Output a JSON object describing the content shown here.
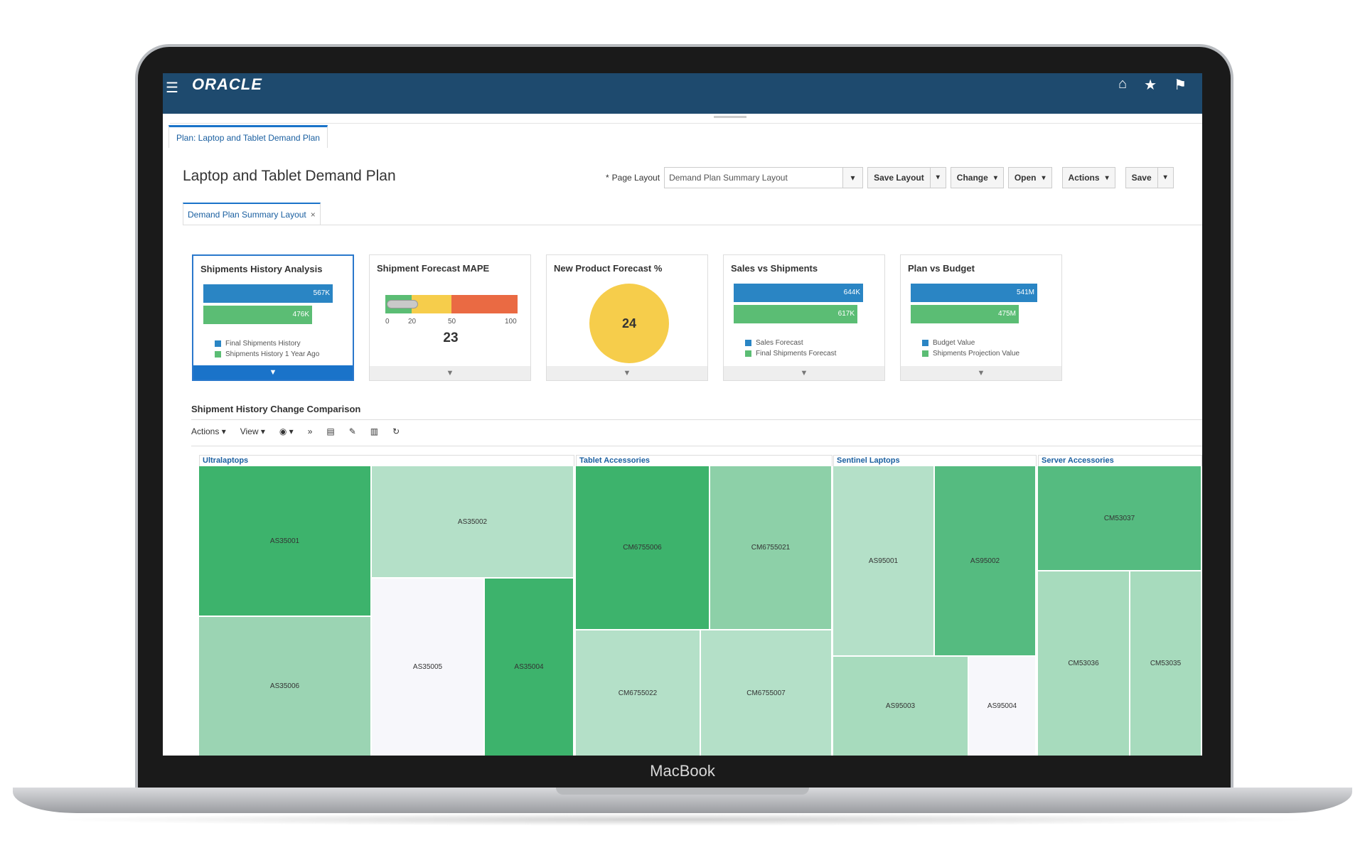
{
  "device": {
    "brand": "MacBook"
  },
  "app": {
    "logo": "ORACLE"
  },
  "plan_tab": "Plan: Laptop and Tablet Demand Plan",
  "page_title": "Laptop and Tablet Demand Plan",
  "toolbar": {
    "page_layout_label": "Page Layout",
    "page_layout_value": "Demand Plan Summary Layout",
    "save_layout": "Save Layout",
    "change": "Change",
    "open": "Open",
    "actions": "Actions",
    "save": "Save"
  },
  "layout_tab": "Demand Plan Summary Layout",
  "tiles": [
    {
      "title": "Shipments History Analysis",
      "bars": [
        {
          "label": "567K",
          "value": 567
        },
        {
          "label": "476K",
          "value": 476
        }
      ],
      "legend": [
        "Final Shipments History",
        "Shipments History 1 Year Ago"
      ]
    },
    {
      "title": "Shipment Forecast MAPE",
      "ticks": [
        "0",
        "20",
        "50",
        "100"
      ],
      "value": "23"
    },
    {
      "title": "New Product Forecast %",
      "value": "24"
    },
    {
      "title": "Sales vs Shipments",
      "bars": [
        {
          "label": "644K",
          "value": 644
        },
        {
          "label": "617K",
          "value": 617
        }
      ],
      "legend": [
        "Sales Forecast",
        "Final Shipments Forecast"
      ]
    },
    {
      "title": "Plan vs Budget",
      "bars": [
        {
          "label": "541M",
          "value": 541
        },
        {
          "label": "475M",
          "value": 475
        }
      ],
      "legend": [
        "Budget Value",
        "Shipments Projection Value"
      ]
    }
  ],
  "section": {
    "title": "Shipment History Change Comparison",
    "toolbar": {
      "actions": "Actions",
      "view": "View"
    }
  },
  "treemap": [
    {
      "group": "Ultralaptops",
      "cells": [
        "AS35001",
        "AS35002",
        "AS35006",
        "AS35005",
        "AS35004"
      ]
    },
    {
      "group": "Tablet Accessories",
      "cells": [
        "CM6755006",
        "CM6755021",
        "CM6755022",
        "CM6755007"
      ]
    },
    {
      "group": "Sentinel Laptops",
      "cells": [
        "AS95001",
        "AS95002",
        "AS95003",
        "AS95004"
      ]
    },
    {
      "group": "Server Accessories",
      "cells": [
        "CM53037",
        "CM53036",
        "CM53035"
      ]
    }
  ],
  "colors": {
    "header": "#1e4a6e",
    "dark_green": "#3db36c",
    "mid_green": "#8dd0a8",
    "light_green": "#b4e0c8",
    "blue": "#2a85c4",
    "gauge_yellow": "#f6cd4b",
    "gauge_red": "#ea6a43"
  }
}
